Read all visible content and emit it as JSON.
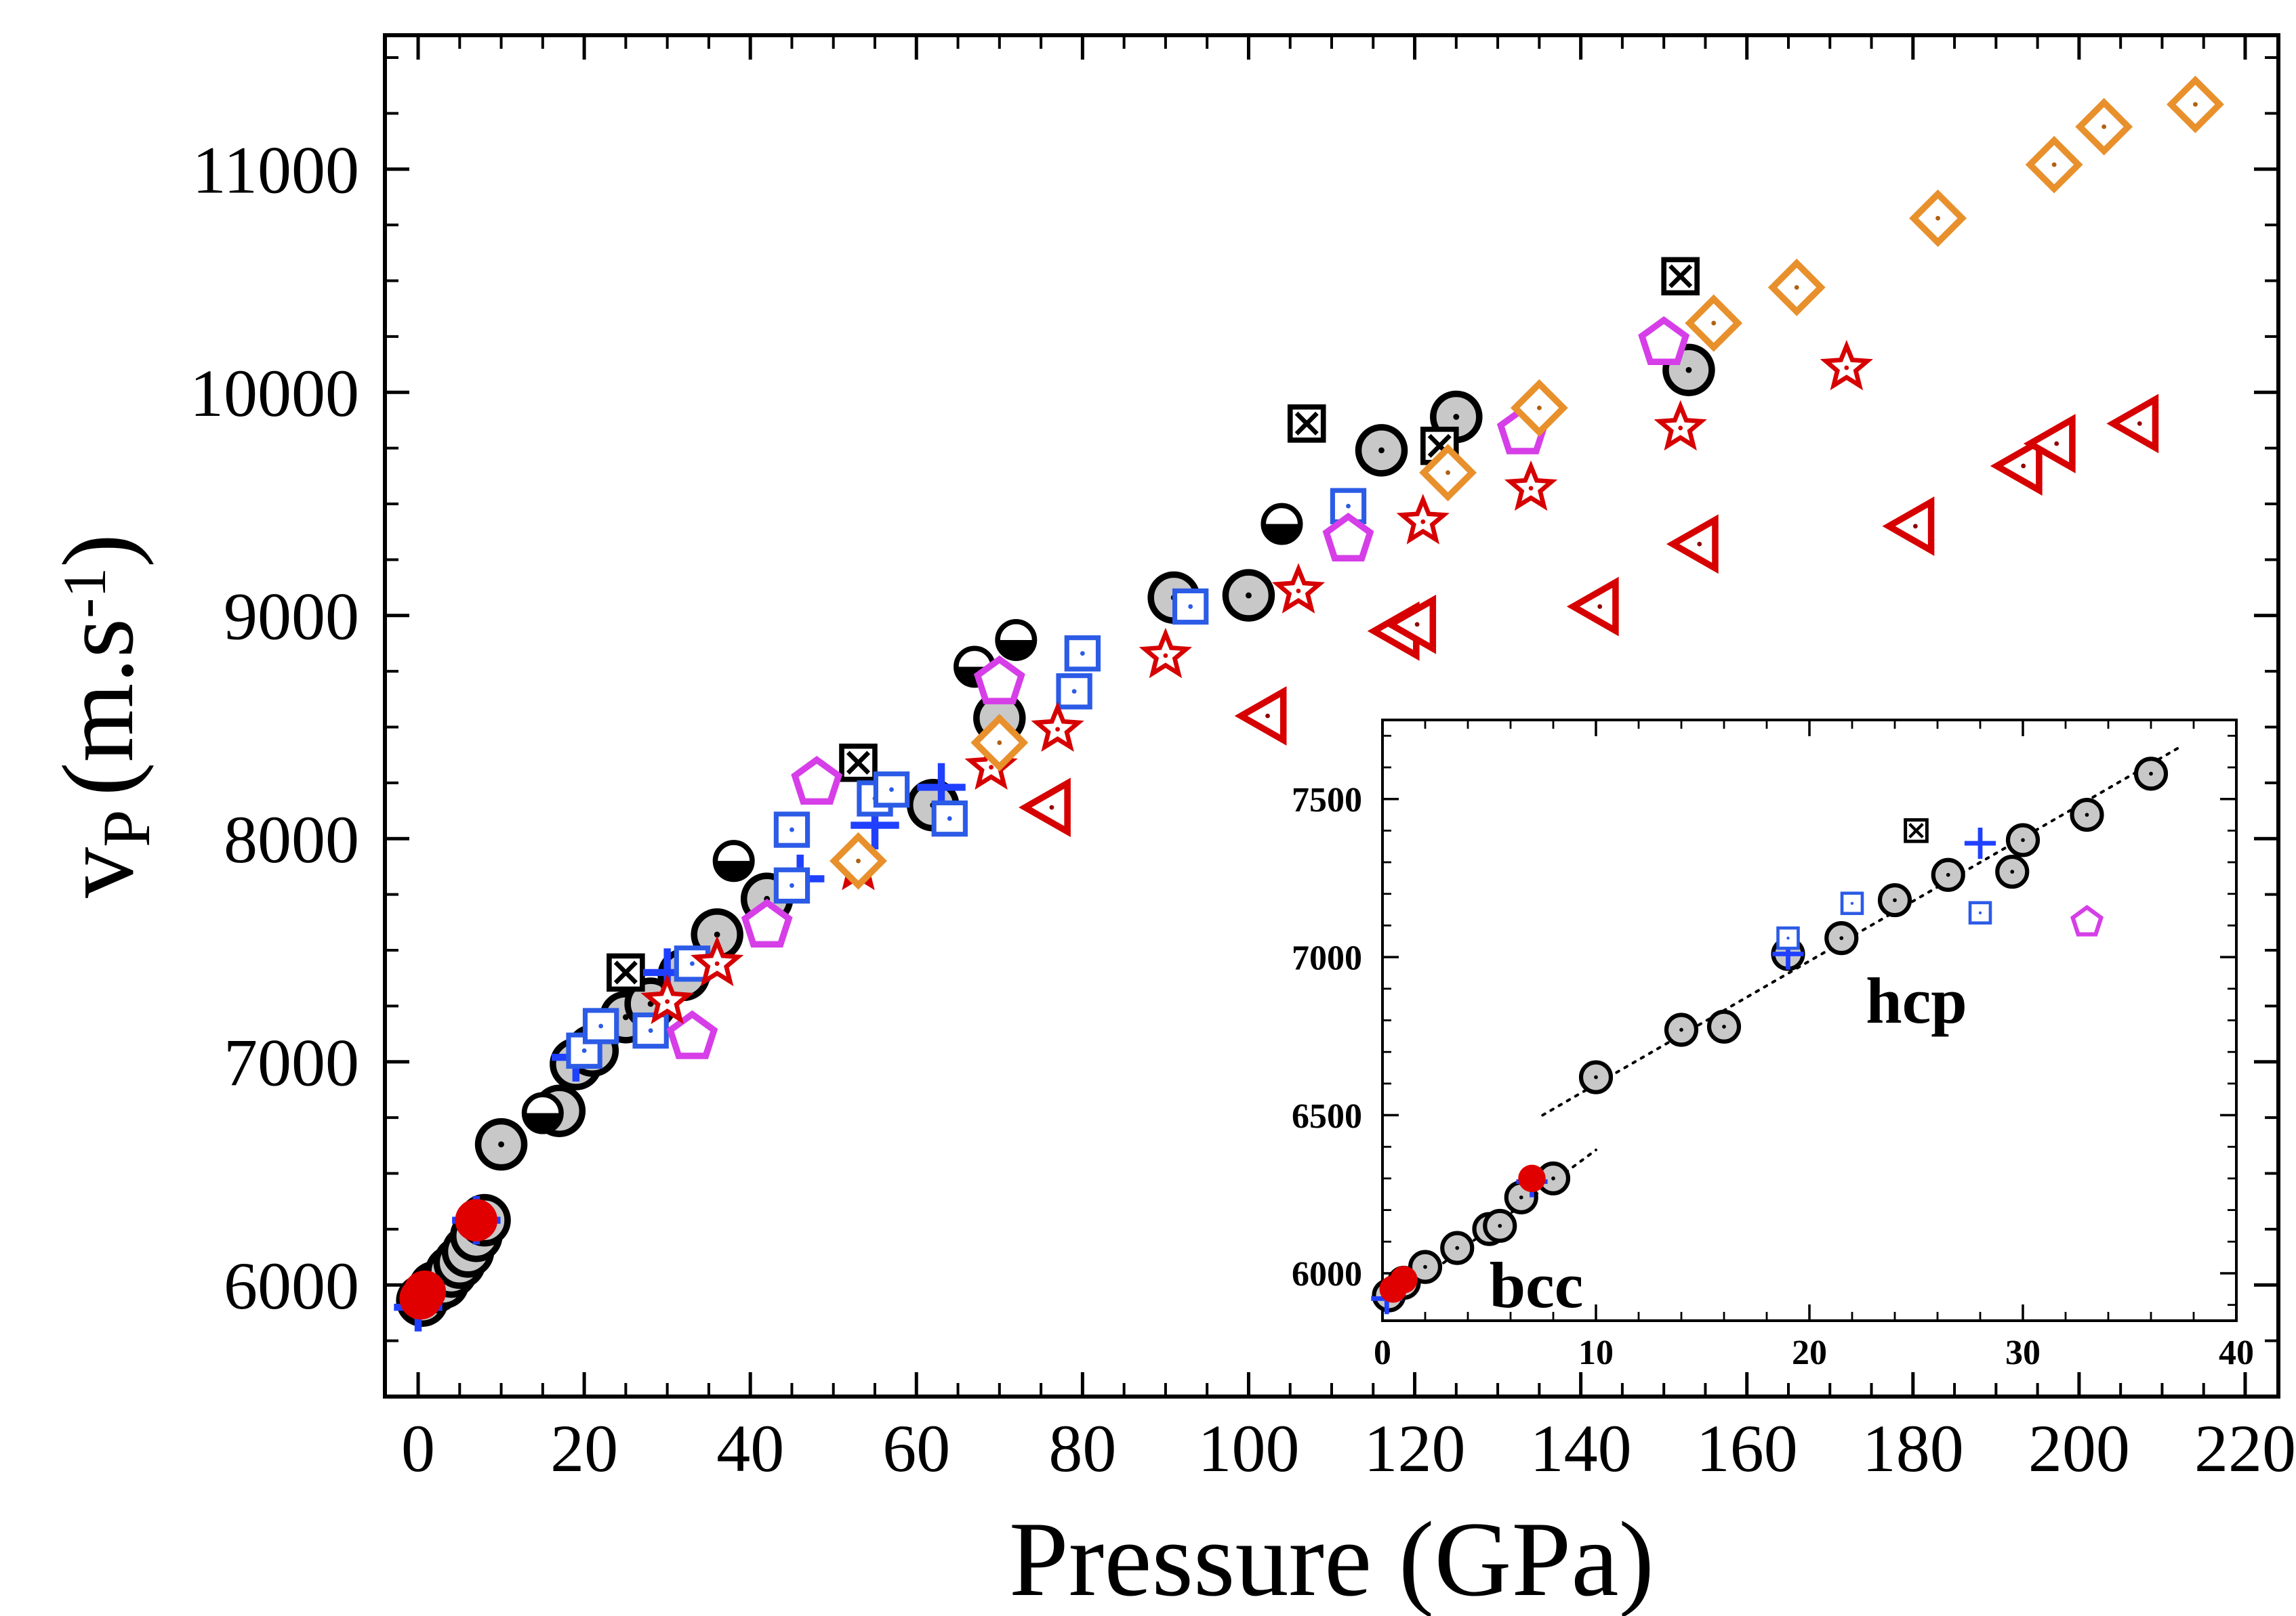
{
  "chart_data": [
    {
      "type": "scatter",
      "xlabel": "Pressure (GPa)",
      "ylabel_main": "v",
      "ylabel_sub": "P",
      "ylabel_unit": "(m.s",
      "ylabel_exp": "-1",
      "ylabel_close": ")",
      "xlim": [
        -4,
        224
      ],
      "ylim": [
        5500,
        11600
      ],
      "xticks": [
        0,
        20,
        40,
        60,
        80,
        100,
        120,
        140,
        160,
        180,
        200,
        220
      ],
      "xtick_labels": [
        "0",
        "20",
        "40",
        "60",
        "80",
        "100",
        "120",
        "140",
        "160",
        "180",
        "200",
        "220"
      ],
      "yticks": [
        6000,
        7000,
        8000,
        9000,
        10000,
        11000
      ],
      "ytick_labels": [
        "6000",
        "7000",
        "8000",
        "9000",
        "10000",
        "11000"
      ],
      "series": [
        {
          "marker": "circle-dot-gray",
          "points": [
            [
              0.5,
              5930
            ],
            [
              2,
              5990
            ],
            [
              3,
              6010
            ],
            [
              4,
              6060
            ],
            [
              5,
              6100
            ],
            [
              6,
              6150
            ],
            [
              7,
              6220
            ],
            [
              8,
              6290
            ],
            [
              10,
              6630
            ],
            [
              17,
              6780
            ],
            [
              19,
              6990
            ],
            [
              21,
              7050
            ],
            [
              25,
              7200
            ],
            [
              28,
              7260
            ],
            [
              32,
              7390
            ],
            [
              36,
              7570
            ],
            [
              42,
              7730
            ],
            [
              62,
              8150
            ],
            [
              70,
              8540
            ],
            [
              91,
              9080
            ],
            [
              100,
              9090
            ],
            [
              116,
              9740
            ],
            [
              125,
              9890
            ],
            [
              153,
              10100
            ]
          ]
        },
        {
          "marker": "half-filled-circle",
          "points": [
            [
              15,
              6770
            ],
            [
              38,
              7900
            ],
            [
              67,
              8770
            ],
            [
              72,
              8890
            ],
            [
              104,
              9410
            ]
          ]
        },
        {
          "marker": "crossed-square",
          "points": [
            [
              25,
              7400
            ],
            [
              53,
              8340
            ],
            [
              107,
              9860
            ],
            [
              123,
              9760
            ],
            [
              152,
              10520
            ]
          ]
        },
        {
          "marker": "plus",
          "points": [
            [
              0,
              5900
            ],
            [
              7,
              6290
            ],
            [
              19,
              7020
            ],
            [
              30,
              7400
            ],
            [
              46,
              7820
            ],
            [
              55,
              8060
            ],
            [
              63,
              8230
            ]
          ]
        },
        {
          "marker": "red-filled-circle",
          "points": [
            [
              0.3,
              5940
            ],
            [
              0.8,
              5970
            ],
            [
              7,
              6290
            ]
          ]
        },
        {
          "marker": "square-dot-blue",
          "points": [
            [
              20,
              7050
            ],
            [
              22,
              7160
            ],
            [
              28,
              7140
            ],
            [
              33,
              7440
            ],
            [
              45,
              7790
            ],
            [
              45,
              8040
            ],
            [
              55,
              8180
            ],
            [
              57,
              8220
            ],
            [
              64,
              8090
            ],
            [
              79,
              8660
            ],
            [
              80,
              8830
            ],
            [
              93,
              9040
            ],
            [
              112,
              9490
            ]
          ]
        },
        {
          "marker": "pentagon-magenta",
          "points": [
            [
              33,
              7110
            ],
            [
              42,
              7610
            ],
            [
              48,
              8250
            ],
            [
              70,
              8700
            ],
            [
              112,
              9340
            ],
            [
              133,
              9820
            ],
            [
              150,
              10220
            ]
          ]
        },
        {
          "marker": "star-red",
          "points": [
            [
              30,
              7270
            ],
            [
              36,
              7440
            ],
            [
              53,
              7870
            ],
            [
              69,
              8320
            ],
            [
              77,
              8490
            ],
            [
              90,
              8820
            ],
            [
              106,
              9110
            ],
            [
              121,
              9420
            ],
            [
              134,
              9570
            ],
            [
              152,
              9840
            ],
            [
              172,
              10110
            ]
          ]
        },
        {
          "marker": "diamond-orange",
          "points": [
            [
              53,
              7900
            ],
            [
              70,
              8430
            ],
            [
              124,
              9640
            ],
            [
              135,
              9930
            ],
            [
              156,
              10310
            ],
            [
              166,
              10470
            ],
            [
              183,
              10780
            ],
            [
              197,
              11020
            ],
            [
              203,
              11190
            ],
            [
              214,
              11290
            ]
          ]
        },
        {
          "marker": "triangle-left-red",
          "points": [
            [
              76,
              8140
            ],
            [
              102,
              8550
            ],
            [
              118,
              8930
            ],
            [
              120,
              8960
            ],
            [
              142,
              9040
            ],
            [
              154,
              9320
            ],
            [
              180,
              9400
            ],
            [
              193,
              9670
            ],
            [
              197,
              9770
            ],
            [
              207,
              9860
            ]
          ]
        }
      ]
    },
    {
      "type": "scatter",
      "region_labels": [
        "bcc",
        "hcp"
      ],
      "xlim": [
        0,
        40
      ],
      "ylim": [
        5850,
        7750
      ],
      "xticks": [
        0,
        10,
        20,
        30,
        40
      ],
      "xtick_labels": [
        "0",
        "10",
        "20",
        "30",
        "40"
      ],
      "yticks": [
        6000,
        6500,
        7000,
        7500
      ],
      "ytick_labels": [
        "6000",
        "6500",
        "7000",
        "7500"
      ],
      "fit_lines": [
        {
          "x": [
            0,
            10
          ],
          "y": [
            5890,
            6390
          ]
        },
        {
          "x": [
            7.5,
            37.5
          ],
          "y": [
            6500,
            7670
          ]
        }
      ],
      "series": [
        {
          "marker": "circle-dot-gray",
          "points": [
            [
              0.3,
              5930
            ],
            [
              1,
              5970
            ],
            [
              2,
              6020
            ],
            [
              3.5,
              6080
            ],
            [
              5,
              6140
            ],
            [
              5.5,
              6150
            ],
            [
              6.5,
              6240
            ],
            [
              8,
              6300
            ],
            [
              10,
              6620
            ],
            [
              14,
              6770
            ],
            [
              16,
              6780
            ],
            [
              19,
              7010
            ],
            [
              21.5,
              7060
            ],
            [
              24,
              7180
            ],
            [
              26.5,
              7260
            ],
            [
              29.5,
              7270
            ],
            [
              30,
              7370
            ],
            [
              33,
              7450
            ],
            [
              36,
              7580
            ]
          ]
        },
        {
          "marker": "crossed-square",
          "points": [
            [
              25,
              7400
            ]
          ]
        },
        {
          "marker": "plus",
          "points": [
            [
              0.2,
              5920
            ],
            [
              7,
              6290
            ],
            [
              19,
              7010
            ],
            [
              28,
              7360
            ]
          ]
        },
        {
          "marker": "red-filled-circle",
          "points": [
            [
              0.5,
              5950
            ],
            [
              1,
              5980
            ],
            [
              7,
              6300
            ]
          ]
        },
        {
          "marker": "square-dot-blue",
          "points": [
            [
              19,
              7060
            ],
            [
              22,
              7170
            ],
            [
              28,
              7140
            ]
          ]
        },
        {
          "marker": "pentagon-magenta",
          "points": [
            [
              33,
              7110
            ]
          ]
        }
      ]
    }
  ]
}
